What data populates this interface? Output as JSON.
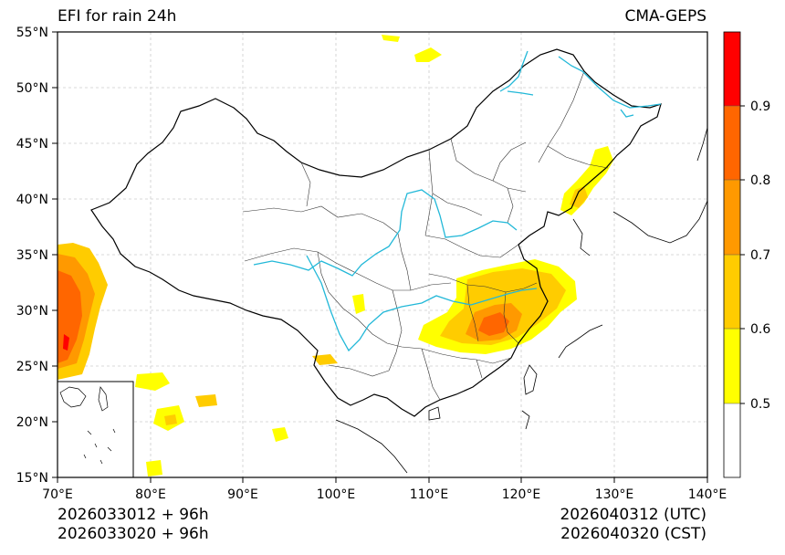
{
  "header": {
    "title": "EFI for rain 24h",
    "model": "CMA-GEPS"
  },
  "footer": {
    "init_utc": "2026033012 + 96h",
    "init_cst": "2026033020 + 96h",
    "valid_utc": "2026040312 (UTC)",
    "valid_cst": "2026040320 (CST)"
  },
  "map": {
    "lat_ticks": [
      "55°N",
      "50°N",
      "45°N",
      "40°N",
      "35°N",
      "30°N",
      "25°N",
      "20°N",
      "15°N"
    ],
    "lon_ticks": [
      "70°E",
      "80°E",
      "90°E",
      "100°E",
      "110°E",
      "120°E",
      "130°E",
      "140°E"
    ],
    "colors": {
      "border": "#000000",
      "province": "#333333",
      "river": "#22b8d8",
      "grid": "#cccccc"
    }
  },
  "colorbar": {
    "levels": [
      "0.5",
      "0.6",
      "0.7",
      "0.8",
      "0.9"
    ],
    "colors": [
      "#ffffff",
      "#ffff00",
      "#ffcc00",
      "#ff9900",
      "#ff6600",
      "#ff0000"
    ]
  }
}
